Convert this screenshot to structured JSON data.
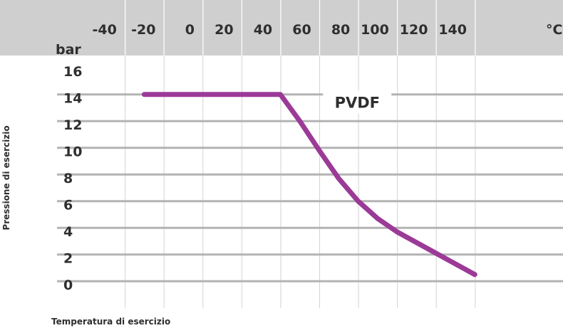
{
  "chart_data": {
    "type": "line",
    "xlabel": "Temperatura di esercizio",
    "ylabel": "Pressione di esercizio",
    "x_unit": "°C",
    "y_unit": "bar",
    "x_ticks": [
      "-40",
      "-20",
      "0",
      "20",
      "40",
      "60",
      "80",
      "100",
      "120",
      "140"
    ],
    "y_ticks": [
      "16",
      "14",
      "12",
      "10",
      "8",
      "6",
      "4",
      "2",
      "0"
    ],
    "xlim": [
      -40,
      150
    ],
    "ylim": [
      0,
      16
    ],
    "grid": true,
    "series": [
      {
        "name": "PVDF",
        "color": "#9b3a97",
        "x": [
          -20,
          -10,
          0,
          10,
          20,
          30,
          40,
          50,
          60,
          70,
          80,
          90,
          100,
          110,
          120,
          130,
          140,
          150
        ],
        "y": [
          15.0,
          15.0,
          15.0,
          15.0,
          15.0,
          15.0,
          15.0,
          15.0,
          13.0,
          10.8,
          8.7,
          7.0,
          5.7,
          4.7,
          3.9,
          3.1,
          2.3,
          1.5
        ]
      }
    ]
  }
}
